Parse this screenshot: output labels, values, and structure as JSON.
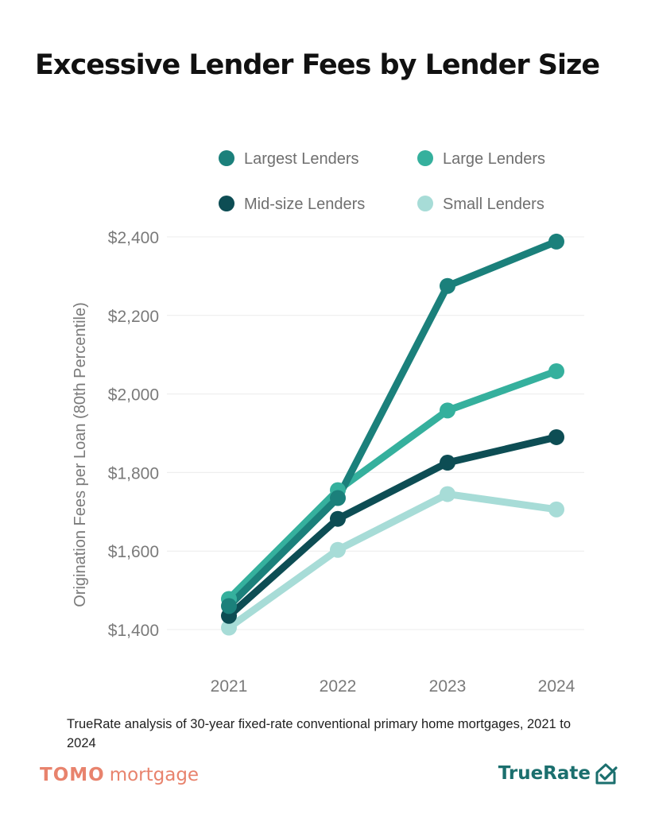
{
  "title": "Excessive Lender Fees by Lender Size",
  "note": "TrueRate analysis of 30-year fixed-rate conventional primary home mortgages, 2021 to 2024",
  "brands": {
    "left_logo": "TOMO",
    "left_word": "mortgage",
    "right": "TrueRate",
    "right_icon": "house-check-icon"
  },
  "colors": {
    "largest": "#1b807b",
    "large": "#35b09d",
    "midsize": "#0d4d54",
    "small": "#a7dcd7",
    "brand_left": "#e8836d",
    "brand_right": "#1b6f6e"
  },
  "chart_data": {
    "type": "line",
    "ylabel": "Origination Fees per Loan (80th Percentile)",
    "xlabel": "",
    "x": [
      "2021",
      "2022",
      "2023",
      "2024"
    ],
    "ylim": [
      1400,
      2400
    ],
    "yticks": [
      1400,
      1600,
      1800,
      2000,
      2200,
      2400
    ],
    "ytick_labels": [
      "$1,400",
      "$1,600",
      "$1,800",
      "$2,000",
      "$2,200",
      "$2,400"
    ],
    "grid": true,
    "legend_position": "top",
    "series": [
      {
        "name": "Largest Lenders",
        "color": "#1b807b",
        "values": [
          1460,
          1735,
          2275,
          2388
        ]
      },
      {
        "name": "Large Lenders",
        "color": "#35b09d",
        "values": [
          1478,
          1755,
          1958,
          2058
        ]
      },
      {
        "name": "Mid-size Lenders",
        "color": "#0d4d54",
        "values": [
          1435,
          1682,
          1825,
          1890
        ]
      },
      {
        "name": "Small Lenders",
        "color": "#a7dcd7",
        "values": [
          1405,
          1603,
          1745,
          1706
        ]
      }
    ],
    "draw_order": [
      3,
      2,
      1,
      0
    ]
  }
}
